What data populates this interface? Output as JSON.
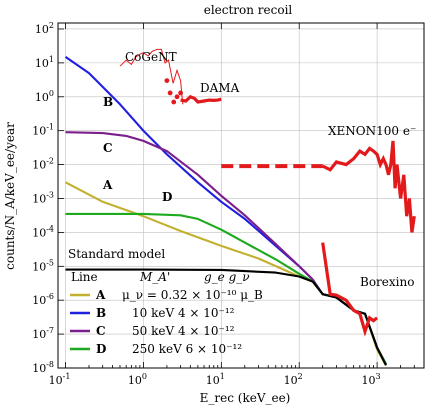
{
  "chart_data": {
    "type": "line",
    "title": "electron recoil",
    "xlabel": "E_rec (keV_ee)",
    "ylabel": "counts/N_A/keV_ee/year",
    "x_scale": "log",
    "y_scale": "log",
    "xlim": [
      0.08,
      4000
    ],
    "ylim": [
      1e-08,
      150
    ],
    "grid": true,
    "x_ticks": [
      {
        "value": 0.1,
        "base": "10",
        "exp": "-1"
      },
      {
        "value": 1,
        "base": "10",
        "exp": "0"
      },
      {
        "value": 10,
        "base": "10",
        "exp": "1"
      },
      {
        "value": 100,
        "base": "10",
        "exp": "2"
      },
      {
        "value": 1000,
        "base": "10",
        "exp": "3"
      }
    ],
    "y_ticks": [
      {
        "value": 1e-08,
        "base": "10",
        "exp": "-8"
      },
      {
        "value": 1e-07,
        "base": "10",
        "exp": "-7"
      },
      {
        "value": 1e-06,
        "base": "10",
        "exp": "-6"
      },
      {
        "value": 1e-05,
        "base": "10",
        "exp": "-5"
      },
      {
        "value": 0.0001,
        "base": "10",
        "exp": "-4"
      },
      {
        "value": 0.001,
        "base": "10",
        "exp": "-3"
      },
      {
        "value": 0.01,
        "base": "10",
        "exp": "-2"
      },
      {
        "value": 0.1,
        "base": "10",
        "exp": "-1"
      },
      {
        "value": 1,
        "base": "10",
        "exp": "0"
      },
      {
        "value": 10,
        "base": "10",
        "exp": "1"
      },
      {
        "value": 100,
        "base": "10",
        "exp": "2"
      }
    ],
    "series": [
      {
        "id": "A",
        "color": "#c2b12e",
        "x": [
          0.1,
          0.3,
          1,
          3,
          10,
          30,
          100,
          150,
          200,
          300,
          500,
          700,
          1000,
          1300
        ],
        "y": [
          0.003,
          0.0008,
          0.0003,
          0.00011,
          4e-05,
          1.7e-05,
          5e-06,
          3.5e-06,
          1.5e-06,
          1.2e-06,
          5e-07,
          4e-07,
          3.5e-08,
          1.2e-08
        ]
      },
      {
        "id": "B",
        "color": "#1f1fe0",
        "x": [
          0.1,
          0.2,
          0.5,
          1,
          2,
          5,
          10,
          20,
          50,
          100,
          150,
          200,
          300,
          500,
          700,
          1000,
          1300
        ],
        "y": [
          15,
          5,
          0.6,
          0.1,
          0.02,
          0.003,
          0.0008,
          0.00025,
          4e-05,
          1e-05,
          4e-06,
          1.5e-06,
          1.2e-06,
          5e-07,
          4e-07,
          4e-08,
          1.3e-08
        ]
      },
      {
        "id": "C",
        "color": "#7a1f8c",
        "x": [
          0.1,
          0.3,
          0.6,
          1,
          2,
          5,
          10,
          20,
          50,
          100,
          150,
          200,
          300,
          500,
          700,
          1000,
          1300
        ],
        "y": [
          0.09,
          0.085,
          0.07,
          0.05,
          0.025,
          0.005,
          0.0012,
          0.00032,
          4.5e-05,
          1e-05,
          4e-06,
          1.5e-06,
          1.2e-06,
          5e-07,
          4e-07,
          4e-08,
          1.3e-08
        ]
      },
      {
        "id": "D",
        "color": "#1eaa1e",
        "x": [
          0.1,
          1,
          3,
          5,
          10,
          20,
          50,
          100,
          150,
          200,
          300,
          500,
          700,
          1000,
          1300
        ],
        "y": [
          0.00035,
          0.00035,
          0.00032,
          0.00025,
          0.00012,
          5e-05,
          1.6e-05,
          6e-06,
          3.5e-06,
          1.5e-06,
          1.2e-06,
          5e-07,
          4e-07,
          4e-08,
          1.3e-08
        ]
      },
      {
        "id": "Standard model",
        "color": "#000000",
        "x": [
          0.1,
          1,
          10,
          50,
          100,
          150,
          200,
          300,
          500,
          700,
          1000,
          1300
        ],
        "y": [
          8e-06,
          8e-06,
          7.8e-06,
          6.5e-06,
          5e-06,
          3.5e-06,
          1.5e-06,
          1.2e-06,
          5e-07,
          4e-07,
          4e-08,
          1.2e-08
        ]
      }
    ],
    "experiments": [
      {
        "name": "CoGeNT",
        "color": "#e31a1c",
        "x": [
          0.5,
          0.6,
          0.7,
          0.8,
          0.9,
          1.0,
          1.15,
          1.3,
          1.5,
          1.7,
          1.9,
          2.1,
          2.4,
          2.7,
          3.0,
          3.2
        ],
        "y": [
          8,
          12,
          9,
          15,
          18,
          20,
          16,
          22,
          25,
          25,
          10,
          12,
          2.5,
          6,
          3,
          0.6
        ]
      },
      {
        "name": "DAMA",
        "color": "#e31a1c",
        "dots_x": [
          2.0,
          2.2,
          2.45,
          2.7,
          3.0
        ],
        "dots_y": [
          3,
          1.3,
          0.7,
          1.0,
          1.3
        ],
        "x": [
          3.0,
          3.5,
          4,
          4.5,
          5,
          6,
          7,
          8,
          9,
          10
        ],
        "y": [
          0.8,
          0.75,
          1.0,
          0.9,
          0.7,
          0.75,
          0.8,
          0.78,
          0.8,
          0.85
        ]
      },
      {
        "name": "XENON100 e⁻",
        "color": "#e31a1c",
        "dashed_x": [
          10,
          200
        ],
        "dashed_y": [
          0.009,
          0.009
        ],
        "x": [
          200,
          250,
          300,
          400,
          500,
          600,
          700,
          800,
          900,
          1000,
          1100,
          1200,
          1300,
          1400,
          1500,
          1600,
          1700,
          1800,
          2000,
          2200,
          2400,
          2600,
          2800,
          3000
        ],
        "y": [
          0.009,
          0.007,
          0.012,
          0.01,
          0.015,
          0.025,
          0.02,
          0.03,
          0.025,
          0.02,
          0.01,
          0.015,
          0.01,
          0.005,
          0.01,
          0.05,
          0.002,
          0.01,
          0.001,
          0.005,
          0.0003,
          0.001,
          0.0001,
          0.0003
        ]
      },
      {
        "name": "Borexino",
        "color": "#e31a1c",
        "x": [
          200,
          250,
          300,
          400,
          500,
          600,
          700,
          800,
          900,
          1000
        ],
        "y": [
          5e-05,
          1.5e-06,
          1.4e-06,
          1e-06,
          5e-07,
          4e-07,
          1.2e-07,
          3e-07,
          2.5e-07,
          3e-07
        ]
      }
    ]
  },
  "annotations": {
    "cogent": "CoGeNT",
    "dama": "DAMA",
    "xenon": "XENON100 e⁻",
    "borexino": "Borexino",
    "standard_model": "Standard model",
    "B": "B",
    "C": "C",
    "A": "A",
    "D": "D"
  },
  "legend": {
    "header": {
      "line": "Line",
      "mass": "M_A'",
      "coupling": "g_e g_ν"
    },
    "rows": [
      {
        "id": "A",
        "color": "#c2b12e",
        "text": "μ_ν = 0.32 × 10⁻¹⁰ μ_B"
      },
      {
        "id": "B",
        "color": "#1f1fe0",
        "text": "10 keV   4 × 10⁻¹²"
      },
      {
        "id": "C",
        "color": "#7a1f8c",
        "text": "50 keV   4 × 10⁻¹²"
      },
      {
        "id": "D",
        "color": "#1eaa1e",
        "text": "250 keV   6 × 10⁻¹²"
      }
    ]
  }
}
